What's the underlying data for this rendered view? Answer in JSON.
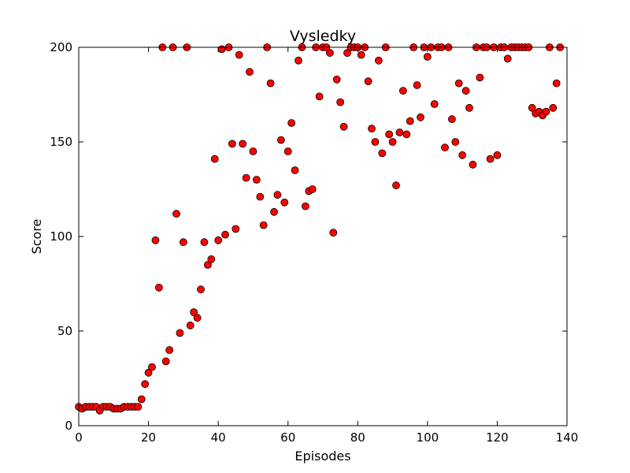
{
  "chart_data": {
    "type": "scatter",
    "title": "Vysledky",
    "xlabel": "Episodes",
    "ylabel": "Score",
    "xlim": [
      0,
      140
    ],
    "ylim": [
      0,
      200
    ],
    "xticks": [
      "0",
      "20",
      "40",
      "60",
      "80",
      "100",
      "120",
      "140"
    ],
    "yticks": [
      "0",
      "50",
      "100",
      "150",
      "200"
    ],
    "grid": false,
    "marker_color": "#ff0000",
    "marker_edge_color": "#000000",
    "series": [
      {
        "points": [
          [
            0,
            10
          ],
          [
            1,
            9
          ],
          [
            2,
            10
          ],
          [
            3,
            10
          ],
          [
            4,
            10
          ],
          [
            5,
            10
          ],
          [
            6,
            8
          ],
          [
            7,
            10
          ],
          [
            8,
            10
          ],
          [
            9,
            10
          ],
          [
            10,
            9
          ],
          [
            11,
            9
          ],
          [
            12,
            9
          ],
          [
            13,
            10
          ],
          [
            14,
            10
          ],
          [
            15,
            10
          ],
          [
            16,
            10
          ],
          [
            17,
            10
          ],
          [
            18,
            14
          ],
          [
            19,
            22
          ],
          [
            20,
            28
          ],
          [
            21,
            31
          ],
          [
            22,
            98
          ],
          [
            23,
            73
          ],
          [
            24,
            200
          ],
          [
            25,
            34
          ],
          [
            26,
            40
          ],
          [
            27,
            200
          ],
          [
            28,
            112
          ],
          [
            29,
            49
          ],
          [
            30,
            97
          ],
          [
            31,
            200
          ],
          [
            32,
            53
          ],
          [
            33,
            60
          ],
          [
            34,
            57
          ],
          [
            35,
            72
          ],
          [
            36,
            97
          ],
          [
            37,
            85
          ],
          [
            38,
            88
          ],
          [
            39,
            141
          ],
          [
            40,
            98
          ],
          [
            41,
            199
          ],
          [
            42,
            101
          ],
          [
            43,
            200
          ],
          [
            44,
            149
          ],
          [
            45,
            104
          ],
          [
            46,
            196
          ],
          [
            47,
            149
          ],
          [
            48,
            131
          ],
          [
            49,
            187
          ],
          [
            50,
            145
          ],
          [
            51,
            130
          ],
          [
            52,
            121
          ],
          [
            53,
            106
          ],
          [
            54,
            200
          ],
          [
            55,
            181
          ],
          [
            56,
            113
          ],
          [
            57,
            122
          ],
          [
            58,
            151
          ],
          [
            59,
            118
          ],
          [
            60,
            145
          ],
          [
            61,
            160
          ],
          [
            62,
            135
          ],
          [
            63,
            193
          ],
          [
            64,
            200
          ],
          [
            65,
            116
          ],
          [
            66,
            124
          ],
          [
            67,
            125
          ],
          [
            68,
            200
          ],
          [
            69,
            174
          ],
          [
            70,
            200
          ],
          [
            71,
            200
          ],
          [
            72,
            197
          ],
          [
            73,
            102
          ],
          [
            74,
            183
          ],
          [
            75,
            171
          ],
          [
            76,
            158
          ],
          [
            77,
            197
          ],
          [
            78,
            200
          ],
          [
            79,
            200
          ],
          [
            80,
            200
          ],
          [
            81,
            196
          ],
          [
            82,
            200
          ],
          [
            83,
            182
          ],
          [
            84,
            157
          ],
          [
            85,
            150
          ],
          [
            86,
            193
          ],
          [
            87,
            144
          ],
          [
            88,
            200
          ],
          [
            89,
            154
          ],
          [
            90,
            150
          ],
          [
            91,
            127
          ],
          [
            92,
            155
          ],
          [
            93,
            177
          ],
          [
            94,
            154
          ],
          [
            95,
            161
          ],
          [
            96,
            200
          ],
          [
            97,
            180
          ],
          [
            98,
            163
          ],
          [
            99,
            200
          ],
          [
            100,
            195
          ],
          [
            101,
            200
          ],
          [
            102,
            170
          ],
          [
            103,
            200
          ],
          [
            104,
            200
          ],
          [
            105,
            147
          ],
          [
            106,
            200
          ],
          [
            107,
            162
          ],
          [
            108,
            150
          ],
          [
            109,
            181
          ],
          [
            110,
            143
          ],
          [
            111,
            177
          ],
          [
            112,
            168
          ],
          [
            113,
            138
          ],
          [
            114,
            200
          ],
          [
            115,
            184
          ],
          [
            116,
            200
          ],
          [
            117,
            200
          ],
          [
            118,
            141
          ],
          [
            119,
            200
          ],
          [
            120,
            143
          ],
          [
            121,
            200
          ],
          [
            122,
            200
          ],
          [
            123,
            194
          ],
          [
            124,
            200
          ],
          [
            125,
            200
          ],
          [
            126,
            200
          ],
          [
            127,
            200
          ],
          [
            128,
            200
          ],
          [
            129,
            200
          ],
          [
            130,
            168
          ],
          [
            131,
            165
          ],
          [
            132,
            166
          ],
          [
            133,
            164
          ],
          [
            134,
            166
          ],
          [
            135,
            200
          ],
          [
            136,
            168
          ],
          [
            137,
            181
          ],
          [
            138,
            200
          ]
        ]
      }
    ]
  }
}
